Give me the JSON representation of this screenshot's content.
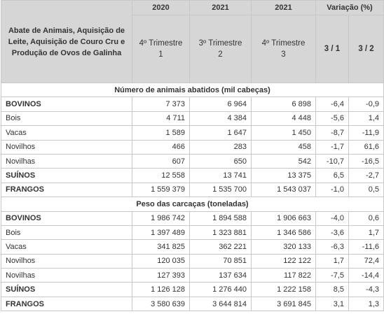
{
  "table": {
    "header": {
      "years": [
        "2020",
        "2021",
        "2021"
      ],
      "variation": "Variação (%)",
      "description": "Abate de Animais, Aquisição de Leite, Aquisição de Couro Cru e Produção de Ovos de Galinha",
      "periods": [
        [
          "4º Trimestre",
          "1"
        ],
        [
          "3º Trimestre",
          "2"
        ],
        [
          "4º Trimestre",
          "3"
        ]
      ],
      "ratios": [
        "3 / 1",
        "3 / 2"
      ]
    },
    "sections": [
      {
        "title": "Número de animais abatidos (mil cabeças)",
        "rows": [
          [
            "BOVINOS",
            "7 373",
            "6 964",
            "6 898",
            "-6,4",
            "-0,9"
          ],
          [
            "Bois",
            "4 711",
            "4 384",
            "4 448",
            "-5,6",
            "1,4"
          ],
          [
            "Vacas",
            "1 589",
            "1 647",
            "1 450",
            "-8,7",
            "-11,9"
          ],
          [
            "Novilhos",
            "466",
            "283",
            "458",
            "-1,7",
            "61,6"
          ],
          [
            "Novilhas",
            "607",
            "650",
            "542",
            "-10,7",
            "-16,5"
          ],
          [
            "SUÍNOS",
            "12 558",
            "13 741",
            "13 375",
            "6,5",
            "-2,7"
          ],
          [
            "FRANGOS",
            "1 559 379",
            "1 535 700",
            "1 543 037",
            "-1,0",
            "0,5"
          ]
        ]
      },
      {
        "title": "Peso das carcaças (toneladas)",
        "rows": [
          [
            "BOVINOS",
            "1 986 742",
            "1 894 588",
            "1 906 663",
            "-4,0",
            "0,6"
          ],
          [
            "Bois",
            "1 397 489",
            "1 323 881",
            "1 346 586",
            "-3,6",
            "1,7"
          ],
          [
            "Vacas",
            "341 825",
            "362 221",
            "320 133",
            "-6,3",
            "-11,6"
          ],
          [
            "Novilhos",
            "120 035",
            "70 851",
            "122 122",
            "1,7",
            "72,4"
          ],
          [
            "Novilhas",
            "127 393",
            "137 634",
            "117 822",
            "-7,5",
            "-14,4"
          ],
          [
            "SUÍNOS",
            "1 126 128",
            "1 276 440",
            "1 222 158",
            "8,5",
            "-4,3"
          ],
          [
            "FRANGOS",
            "3 580 639",
            "3 644 814",
            "3 691 845",
            "3,1",
            "1,3"
          ]
        ]
      }
    ]
  }
}
